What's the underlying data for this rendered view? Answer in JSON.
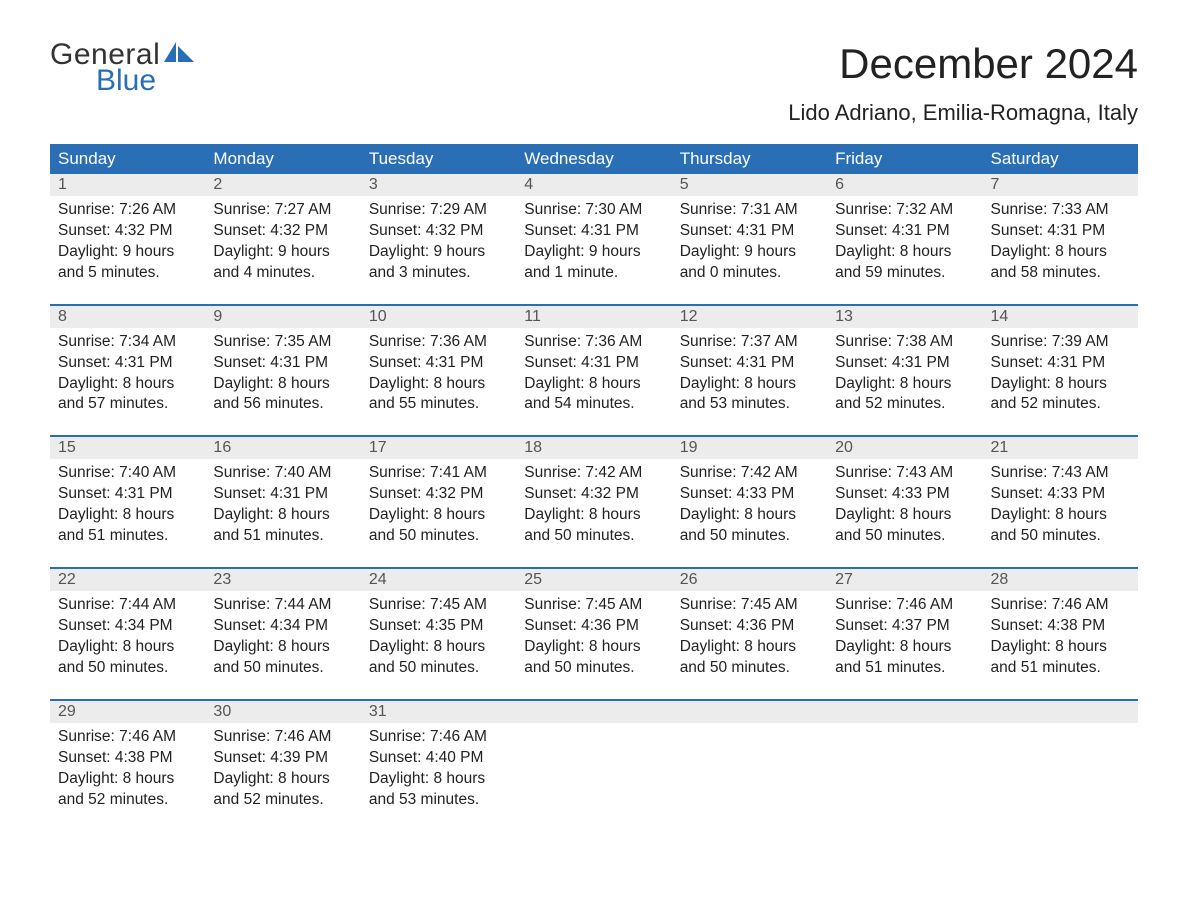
{
  "logo": {
    "word1": "General",
    "word2": "Blue",
    "text_color_1": "#333333",
    "text_color_2": "#2a6db4",
    "shape_color": "#2a6db4"
  },
  "header": {
    "month_title": "December 2024",
    "location": "Lido Adriano, Emilia-Romagna, Italy"
  },
  "style": {
    "page_bg": "#ffffff",
    "header_row_bg": "#2a6fb5",
    "header_row_fg": "#ffffff",
    "daynum_row_bg": "#ececec",
    "daynum_fg": "#555555",
    "body_text_color": "#222222",
    "week_divider_color": "#2a6fb5",
    "title_fontsize": 42,
    "location_fontsize": 22,
    "header_fontsize": 17,
    "cell_fontsize": 15.5,
    "font_family": "Arial"
  },
  "labels": {
    "sunrise": "Sunrise:",
    "sunset": "Sunset:",
    "daylight": "Daylight:"
  },
  "day_headers": [
    "Sunday",
    "Monday",
    "Tuesday",
    "Wednesday",
    "Thursday",
    "Friday",
    "Saturday"
  ],
  "weeks": [
    [
      {
        "n": "1",
        "sunrise": "7:26 AM",
        "sunset": "4:32 PM",
        "daylight_l1": "9 hours",
        "daylight_l2": "and 5 minutes."
      },
      {
        "n": "2",
        "sunrise": "7:27 AM",
        "sunset": "4:32 PM",
        "daylight_l1": "9 hours",
        "daylight_l2": "and 4 minutes."
      },
      {
        "n": "3",
        "sunrise": "7:29 AM",
        "sunset": "4:32 PM",
        "daylight_l1": "9 hours",
        "daylight_l2": "and 3 minutes."
      },
      {
        "n": "4",
        "sunrise": "7:30 AM",
        "sunset": "4:31 PM",
        "daylight_l1": "9 hours",
        "daylight_l2": "and 1 minute."
      },
      {
        "n": "5",
        "sunrise": "7:31 AM",
        "sunset": "4:31 PM",
        "daylight_l1": "9 hours",
        "daylight_l2": "and 0 minutes."
      },
      {
        "n": "6",
        "sunrise": "7:32 AM",
        "sunset": "4:31 PM",
        "daylight_l1": "8 hours",
        "daylight_l2": "and 59 minutes."
      },
      {
        "n": "7",
        "sunrise": "7:33 AM",
        "sunset": "4:31 PM",
        "daylight_l1": "8 hours",
        "daylight_l2": "and 58 minutes."
      }
    ],
    [
      {
        "n": "8",
        "sunrise": "7:34 AM",
        "sunset": "4:31 PM",
        "daylight_l1": "8 hours",
        "daylight_l2": "and 57 minutes."
      },
      {
        "n": "9",
        "sunrise": "7:35 AM",
        "sunset": "4:31 PM",
        "daylight_l1": "8 hours",
        "daylight_l2": "and 56 minutes."
      },
      {
        "n": "10",
        "sunrise": "7:36 AM",
        "sunset": "4:31 PM",
        "daylight_l1": "8 hours",
        "daylight_l2": "and 55 minutes."
      },
      {
        "n": "11",
        "sunrise": "7:36 AM",
        "sunset": "4:31 PM",
        "daylight_l1": "8 hours",
        "daylight_l2": "and 54 minutes."
      },
      {
        "n": "12",
        "sunrise": "7:37 AM",
        "sunset": "4:31 PM",
        "daylight_l1": "8 hours",
        "daylight_l2": "and 53 minutes."
      },
      {
        "n": "13",
        "sunrise": "7:38 AM",
        "sunset": "4:31 PM",
        "daylight_l1": "8 hours",
        "daylight_l2": "and 52 minutes."
      },
      {
        "n": "14",
        "sunrise": "7:39 AM",
        "sunset": "4:31 PM",
        "daylight_l1": "8 hours",
        "daylight_l2": "and 52 minutes."
      }
    ],
    [
      {
        "n": "15",
        "sunrise": "7:40 AM",
        "sunset": "4:31 PM",
        "daylight_l1": "8 hours",
        "daylight_l2": "and 51 minutes."
      },
      {
        "n": "16",
        "sunrise": "7:40 AM",
        "sunset": "4:31 PM",
        "daylight_l1": "8 hours",
        "daylight_l2": "and 51 minutes."
      },
      {
        "n": "17",
        "sunrise": "7:41 AM",
        "sunset": "4:32 PM",
        "daylight_l1": "8 hours",
        "daylight_l2": "and 50 minutes."
      },
      {
        "n": "18",
        "sunrise": "7:42 AM",
        "sunset": "4:32 PM",
        "daylight_l1": "8 hours",
        "daylight_l2": "and 50 minutes."
      },
      {
        "n": "19",
        "sunrise": "7:42 AM",
        "sunset": "4:33 PM",
        "daylight_l1": "8 hours",
        "daylight_l2": "and 50 minutes."
      },
      {
        "n": "20",
        "sunrise": "7:43 AM",
        "sunset": "4:33 PM",
        "daylight_l1": "8 hours",
        "daylight_l2": "and 50 minutes."
      },
      {
        "n": "21",
        "sunrise": "7:43 AM",
        "sunset": "4:33 PM",
        "daylight_l1": "8 hours",
        "daylight_l2": "and 50 minutes."
      }
    ],
    [
      {
        "n": "22",
        "sunrise": "7:44 AM",
        "sunset": "4:34 PM",
        "daylight_l1": "8 hours",
        "daylight_l2": "and 50 minutes."
      },
      {
        "n": "23",
        "sunrise": "7:44 AM",
        "sunset": "4:34 PM",
        "daylight_l1": "8 hours",
        "daylight_l2": "and 50 minutes."
      },
      {
        "n": "24",
        "sunrise": "7:45 AM",
        "sunset": "4:35 PM",
        "daylight_l1": "8 hours",
        "daylight_l2": "and 50 minutes."
      },
      {
        "n": "25",
        "sunrise": "7:45 AM",
        "sunset": "4:36 PM",
        "daylight_l1": "8 hours",
        "daylight_l2": "and 50 minutes."
      },
      {
        "n": "26",
        "sunrise": "7:45 AM",
        "sunset": "4:36 PM",
        "daylight_l1": "8 hours",
        "daylight_l2": "and 50 minutes."
      },
      {
        "n": "27",
        "sunrise": "7:46 AM",
        "sunset": "4:37 PM",
        "daylight_l1": "8 hours",
        "daylight_l2": "and 51 minutes."
      },
      {
        "n": "28",
        "sunrise": "7:46 AM",
        "sunset": "4:38 PM",
        "daylight_l1": "8 hours",
        "daylight_l2": "and 51 minutes."
      }
    ],
    [
      {
        "n": "29",
        "sunrise": "7:46 AM",
        "sunset": "4:38 PM",
        "daylight_l1": "8 hours",
        "daylight_l2": "and 52 minutes."
      },
      {
        "n": "30",
        "sunrise": "7:46 AM",
        "sunset": "4:39 PM",
        "daylight_l1": "8 hours",
        "daylight_l2": "and 52 minutes."
      },
      {
        "n": "31",
        "sunrise": "7:46 AM",
        "sunset": "4:40 PM",
        "daylight_l1": "8 hours",
        "daylight_l2": "and 53 minutes."
      },
      null,
      null,
      null,
      null
    ]
  ]
}
